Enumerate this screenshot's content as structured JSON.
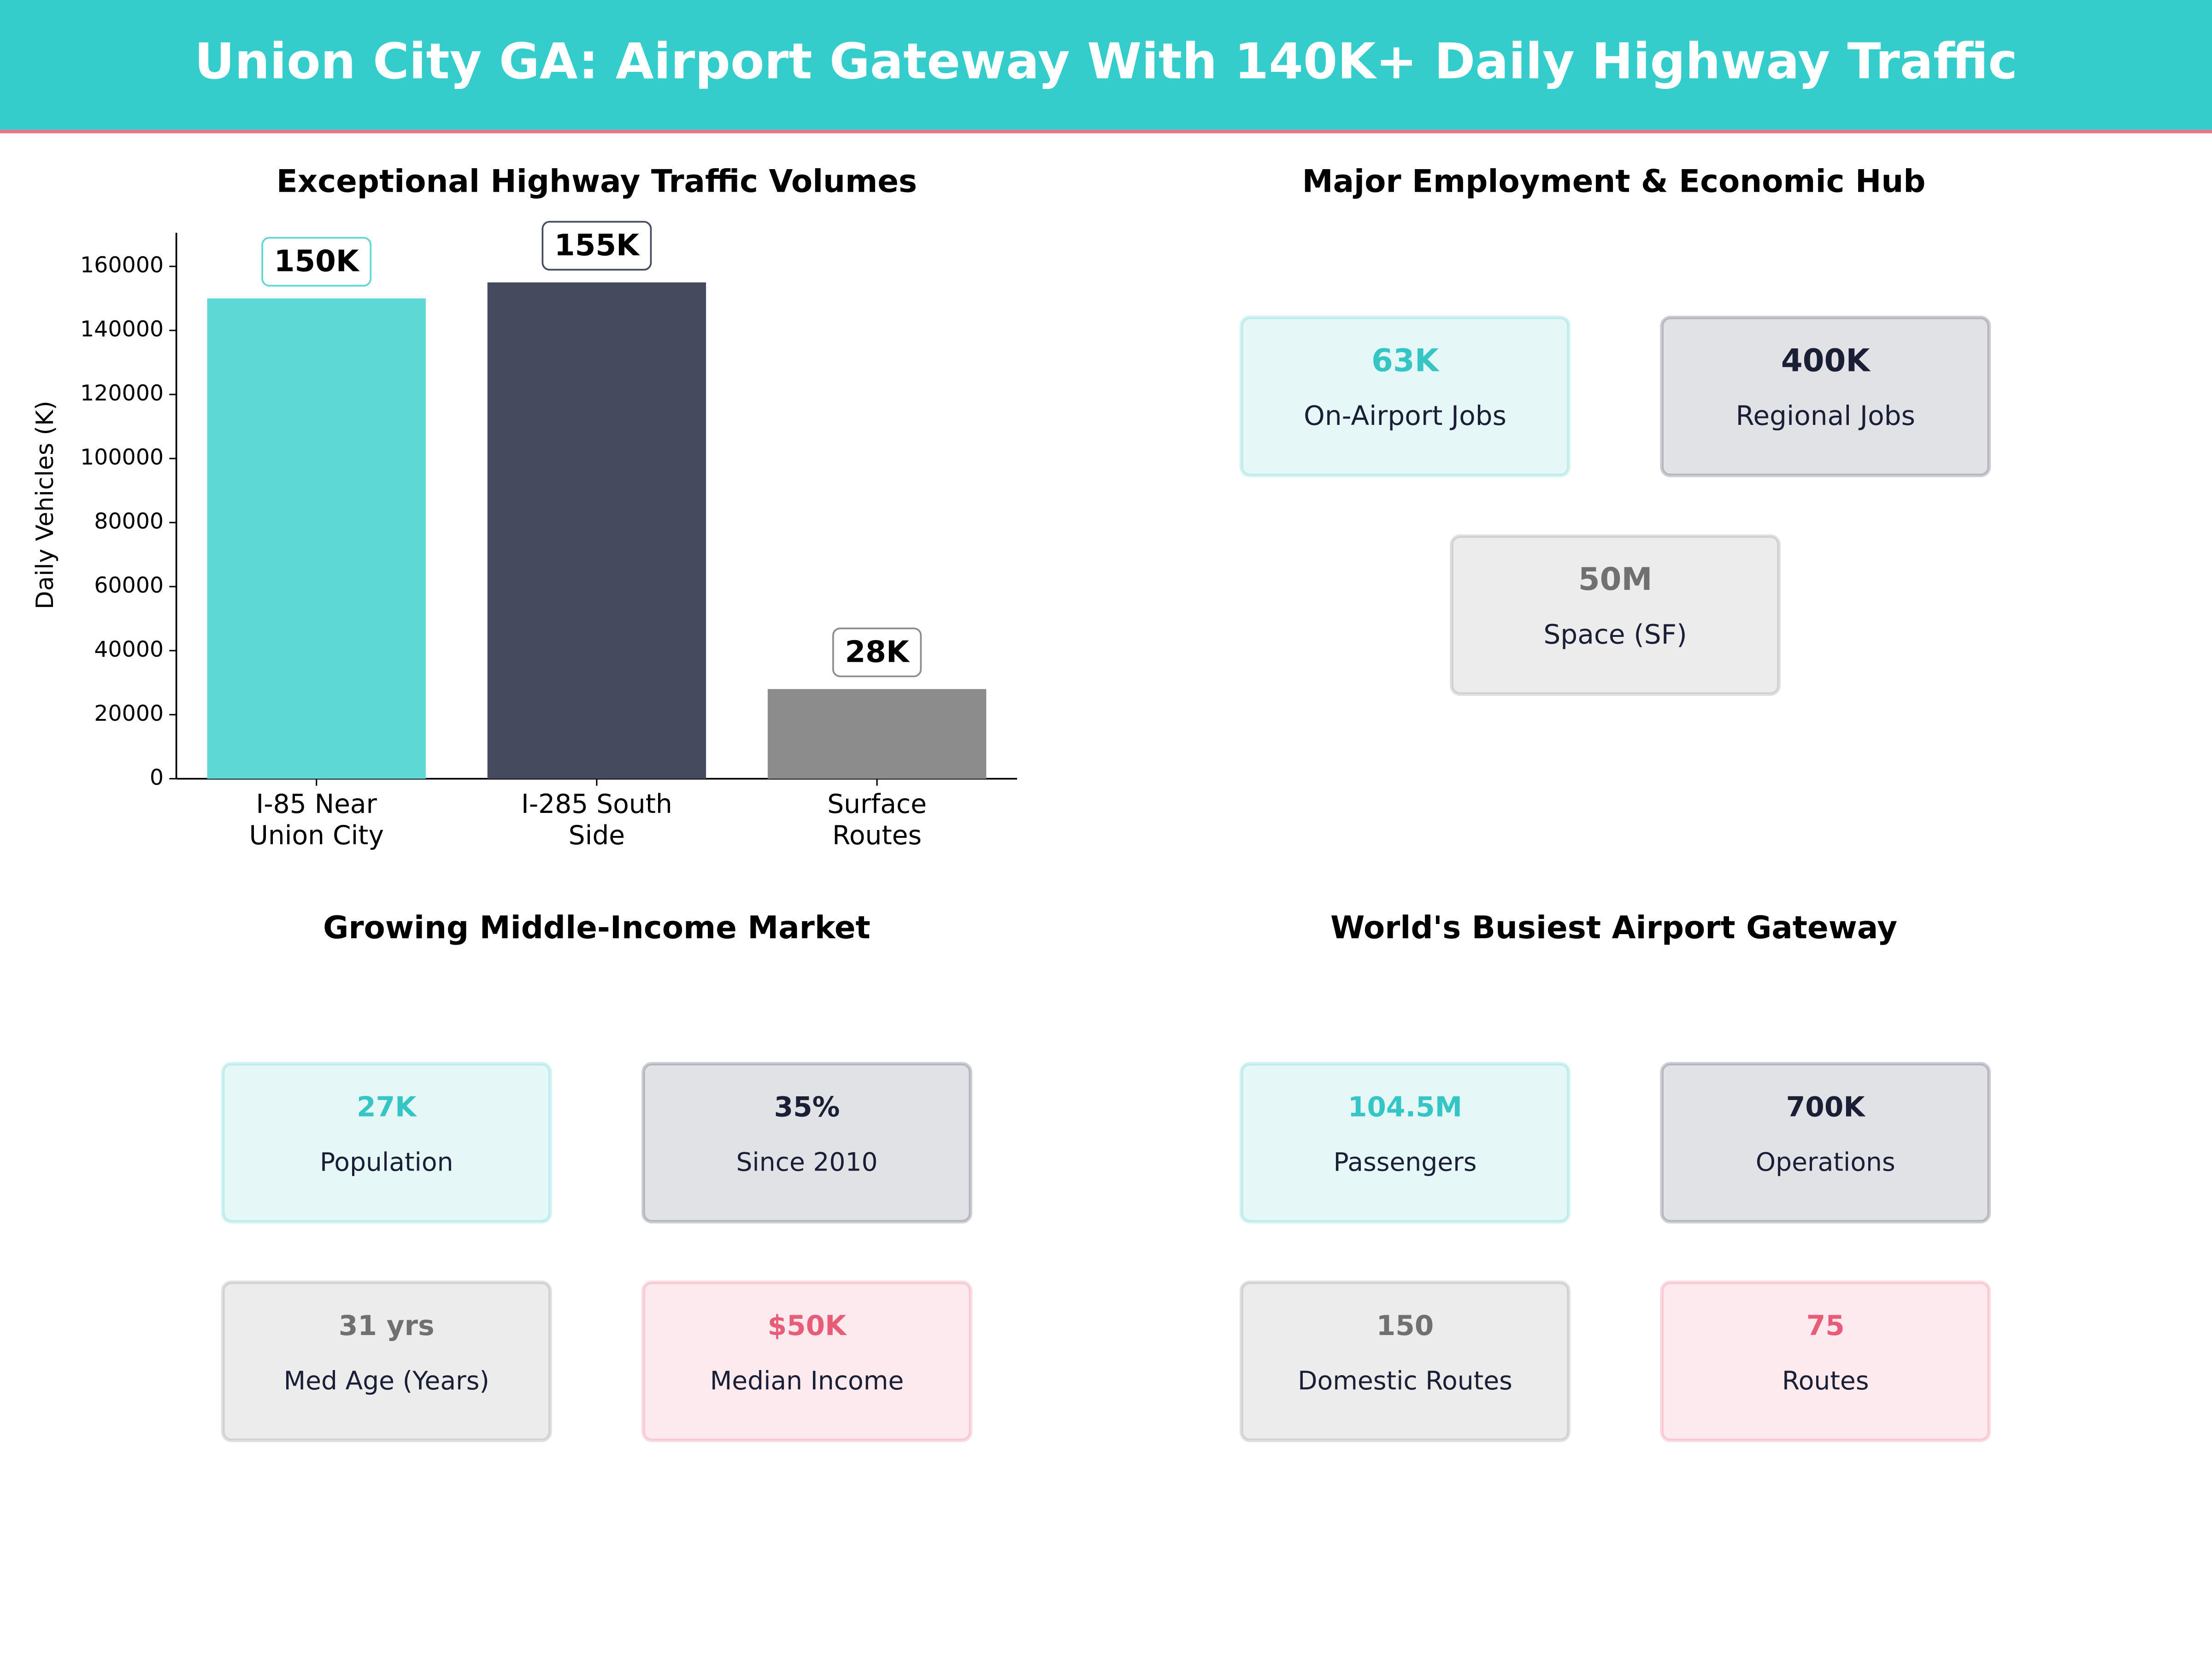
{
  "header": {
    "title": "Union City GA: Airport Gateway With 140K+ Daily Highway Traffic"
  },
  "chart_data": {
    "type": "bar",
    "title": "Exceptional Highway Traffic Volumes",
    "y_label": "Daily Vehicles (K)",
    "categories": [
      "I-85 Near\nUnion City",
      "I-285 South\nSide",
      "Surface\nRoutes"
    ],
    "values": [
      150000,
      155000,
      28000
    ],
    "value_labels": [
      "150K",
      "155K",
      "28K"
    ],
    "colors": [
      "#5ed8d4",
      "#454a5f",
      "#8c8c8c"
    ],
    "ylim": [
      0,
      170500
    ],
    "yticks": [
      0,
      20000,
      40000,
      60000,
      80000,
      100000,
      120000,
      140000,
      160000
    ]
  },
  "panels": [
    {
      "title": "Major Employment & Economic Hub",
      "cards": [
        {
          "value": "63K",
          "label": "On-Airport Jobs",
          "color": "#35c5c5"
        },
        {
          "value": "400K",
          "label": "Regional Jobs",
          "color": "#1a1f36"
        },
        {
          "value": "50M",
          "label": "Space (SF)",
          "color": "#707070"
        }
      ]
    },
    {
      "title": "Growing Middle-Income Market",
      "cards": [
        {
          "value": "27K",
          "label": "Population",
          "color": "#35c5c5"
        },
        {
          "value": "35%",
          "label": "Since 2010",
          "color": "#1a1f36"
        },
        {
          "value": "31 yrs",
          "label": "Med Age (Years)",
          "color": "#707070"
        },
        {
          "value": "$50K",
          "label": "Median Income",
          "color": "#e85c78"
        }
      ]
    },
    {
      "title": "World's Busiest Airport Gateway",
      "cards": [
        {
          "value": "104.5M",
          "label": "Passengers",
          "color": "#35c5c5"
        },
        {
          "value": "700K",
          "label": "Operations",
          "color": "#1a1f36"
        },
        {
          "value": "150",
          "label": "Domestic Routes",
          "color": "#707070"
        },
        {
          "value": "75",
          "label": "Routes",
          "color": "#e85c78"
        }
      ]
    }
  ]
}
